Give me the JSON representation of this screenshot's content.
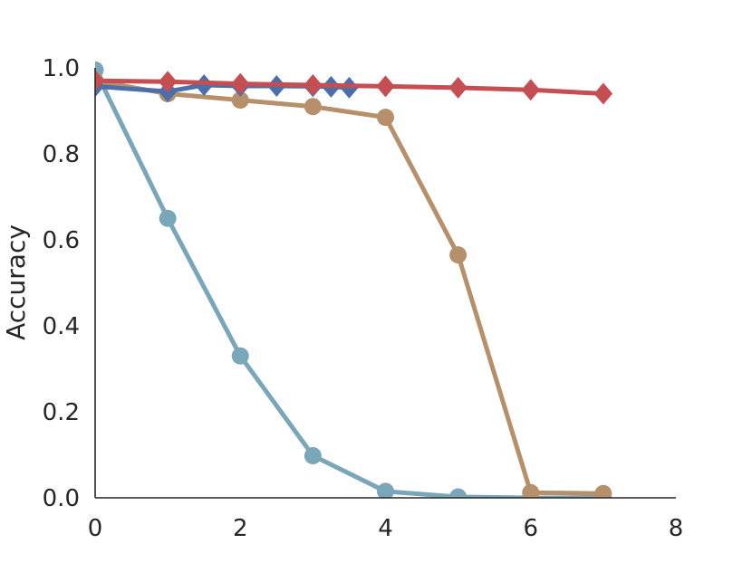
{
  "chart_data": {
    "type": "line",
    "title": "",
    "xlabel": "",
    "ylabel": "Accuracy",
    "xlim": [
      0,
      8
    ],
    "ylim": [
      0,
      1.0
    ],
    "x_ticks": [
      0,
      2,
      4,
      6,
      8
    ],
    "x_tick_labels": [
      "0",
      "2",
      "4",
      "6",
      "8"
    ],
    "y_ticks": [
      0,
      0.2,
      0.4,
      0.6,
      0.8,
      1.0
    ],
    "y_tick_labels": [
      "0.0",
      "0.2",
      "0.4",
      "0.6",
      "0.8",
      "1.0"
    ],
    "grid": false,
    "legend": "none",
    "series": [
      {
        "color": "#7aa6b9",
        "marker": "circle",
        "x": [
          0,
          1,
          2,
          3,
          4,
          5,
          6,
          7
        ],
        "y": [
          0.995,
          0.65,
          0.33,
          0.098,
          0.015,
          0.002,
          0.0,
          0.0
        ]
      },
      {
        "color": "#b5906b",
        "marker": "circle",
        "x": [
          0,
          1,
          2,
          3,
          4,
          5,
          6,
          7
        ],
        "y": [
          0.97,
          0.94,
          0.925,
          0.91,
          0.885,
          0.565,
          0.012,
          0.01
        ]
      },
      {
        "color": "#4c6fa9",
        "marker": "diamond",
        "x": [
          0,
          1,
          1.5,
          2,
          2.5,
          3,
          3.25,
          3.5
        ],
        "y": [
          0.957,
          0.945,
          0.96,
          0.958,
          0.958,
          0.957,
          0.956,
          0.954
        ]
      },
      {
        "color": "#c44e52",
        "marker": "diamond",
        "x": [
          0,
          1,
          2,
          3,
          4,
          5,
          6,
          7
        ],
        "y": [
          0.97,
          0.968,
          0.963,
          0.96,
          0.957,
          0.954,
          0.949,
          0.94
        ]
      }
    ]
  }
}
